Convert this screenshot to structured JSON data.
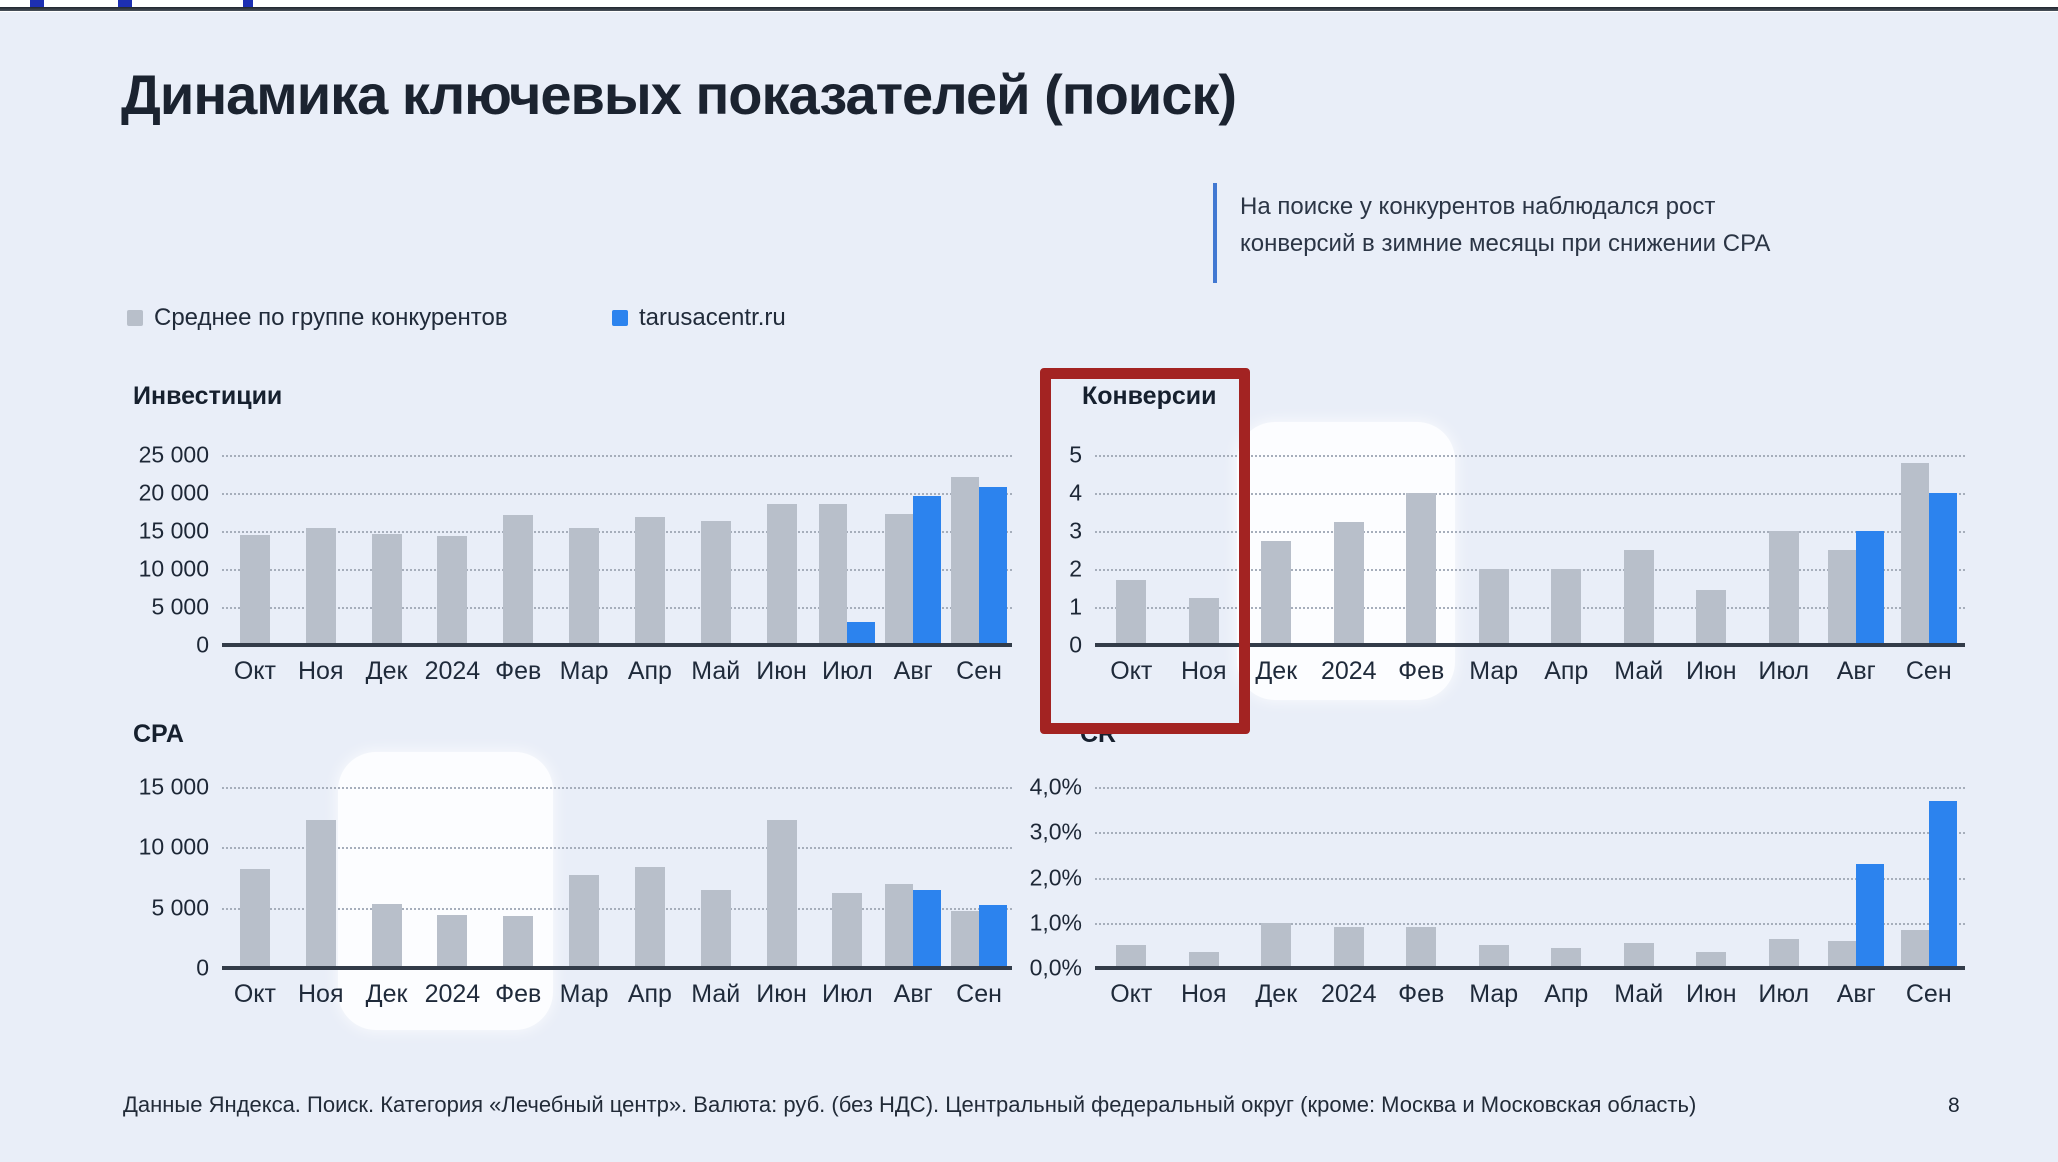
{
  "page": {
    "title": "Динамика ключевых показателей (поиск)",
    "callout": "На поиске у конкурентов наблюдался рост конверсий в зимние месяцы при снижении CPA",
    "footer": "Данные Яндекса. Поиск. Категория «Лечебный центр». Валюта: руб. (без НДС). Центральный федеральный округ (кроме: Москва и Московская область)",
    "page_number": "8"
  },
  "legend": {
    "competitors": "Среднее по группе конкурентов",
    "site": "tarusacentr.ru"
  },
  "colors": {
    "competitors_bar": "#b8bfca",
    "site_bar": "#2c83ee",
    "red_annotation_box": "#a32322",
    "callout_line": "#4178d2"
  },
  "chart_data": [
    {
      "id": "investments",
      "type": "bar",
      "title": "Инвестиции",
      "categories": [
        "Окт",
        "Ноя",
        "Дек",
        "2024",
        "Фев",
        "Мар",
        "Апр",
        "Май",
        "Июн",
        "Июл",
        "Авг",
        "Сен"
      ],
      "series": [
        {
          "name": "Среднее по группе конкурентов",
          "values": [
            14500,
            15400,
            14600,
            14300,
            17100,
            15400,
            16800,
            16300,
            18600,
            18600,
            17300,
            22100
          ]
        },
        {
          "name": "tarusacentr.ru",
          "values": [
            null,
            null,
            null,
            null,
            null,
            null,
            null,
            null,
            null,
            3000,
            19600,
            20800
          ]
        }
      ],
      "ylim": [
        0,
        25000
      ],
      "yticks": [
        {
          "value": 25000,
          "label": "25 000"
        },
        {
          "value": 20000,
          "label": "20 000"
        },
        {
          "value": 15000,
          "label": "15 000"
        },
        {
          "value": 10000,
          "label": "10 000"
        },
        {
          "value": 5000,
          "label": "5 000"
        },
        {
          "value": 0,
          "label": "0"
        }
      ],
      "grid": "dotted-horizontal"
    },
    {
      "id": "conversions",
      "type": "bar",
      "title": "Конверсии",
      "categories": [
        "Окт",
        "Ноя",
        "Дек",
        "2024",
        "Фев",
        "Мар",
        "Апр",
        "Май",
        "Июн",
        "Июл",
        "Авг",
        "Сен"
      ],
      "series": [
        {
          "name": "Среднее по группе конкурентов",
          "values": [
            1.7,
            1.25,
            2.75,
            3.25,
            4,
            2,
            2,
            2.5,
            1.45,
            3,
            2.5,
            4.8
          ]
        },
        {
          "name": "tarusacentr.ru",
          "values": [
            null,
            null,
            null,
            null,
            null,
            null,
            null,
            null,
            null,
            null,
            3,
            4
          ]
        }
      ],
      "ylim": [
        0,
        5
      ],
      "yticks": [
        {
          "value": 5,
          "label": "5"
        },
        {
          "value": 4,
          "label": "4"
        },
        {
          "value": 3,
          "label": "3"
        },
        {
          "value": 2,
          "label": "2"
        },
        {
          "value": 1,
          "label": "1"
        },
        {
          "value": 0,
          "label": "0"
        }
      ],
      "grid": "dotted-horizontal",
      "annotations": {
        "red_box_months": [
          "Окт",
          "Ноя"
        ],
        "white_highlight_months": [
          "Дек",
          "2024",
          "Фев"
        ]
      }
    },
    {
      "id": "cpa",
      "type": "bar",
      "title": "CPA",
      "categories": [
        "Окт",
        "Ноя",
        "Дек",
        "2024",
        "Фев",
        "Мар",
        "Апр",
        "Май",
        "Июн",
        "Июл",
        "Авг",
        "Сен"
      ],
      "series": [
        {
          "name": "Среднее по группе конкурентов",
          "values": [
            8200,
            12300,
            5300,
            4400,
            4300,
            7700,
            8400,
            6500,
            12300,
            6200,
            7000,
            4700
          ]
        },
        {
          "name": "tarusacentr.ru",
          "values": [
            null,
            null,
            null,
            null,
            null,
            null,
            null,
            null,
            null,
            null,
            6500,
            5200
          ]
        }
      ],
      "ylim": [
        0,
        15000
      ],
      "yticks": [
        {
          "value": 15000,
          "label": "15 000"
        },
        {
          "value": 10000,
          "label": "10 000"
        },
        {
          "value": 5000,
          "label": "5 000"
        },
        {
          "value": 0,
          "label": "0"
        }
      ],
      "grid": "dotted-horizontal",
      "annotations": {
        "white_highlight_months": [
          "Дек",
          "2024",
          "Фев"
        ]
      }
    },
    {
      "id": "cr",
      "type": "bar",
      "title": "CR",
      "categories": [
        "Окт",
        "Ноя",
        "Дек",
        "2024",
        "Фев",
        "Мар",
        "Апр",
        "Май",
        "Июн",
        "Июл",
        "Авг",
        "Сен"
      ],
      "series": [
        {
          "name": "Среднее по группе конкурентов",
          "values": [
            0.5,
            0.35,
            1.0,
            0.9,
            0.9,
            0.5,
            0.45,
            0.55,
            0.35,
            0.65,
            0.6,
            0.85
          ]
        },
        {
          "name": "tarusacentr.ru",
          "values": [
            null,
            null,
            null,
            null,
            null,
            null,
            null,
            null,
            null,
            null,
            2.3,
            3.7
          ]
        }
      ],
      "ylim": [
        0,
        4
      ],
      "yticks": [
        {
          "value": 4,
          "label": "4,0%"
        },
        {
          "value": 3,
          "label": "3,0%"
        },
        {
          "value": 2,
          "label": "2,0%"
        },
        {
          "value": 1,
          "label": "1,0%"
        },
        {
          "value": 0,
          "label": "0,0%"
        }
      ],
      "grid": "dotted-horizontal"
    }
  ]
}
